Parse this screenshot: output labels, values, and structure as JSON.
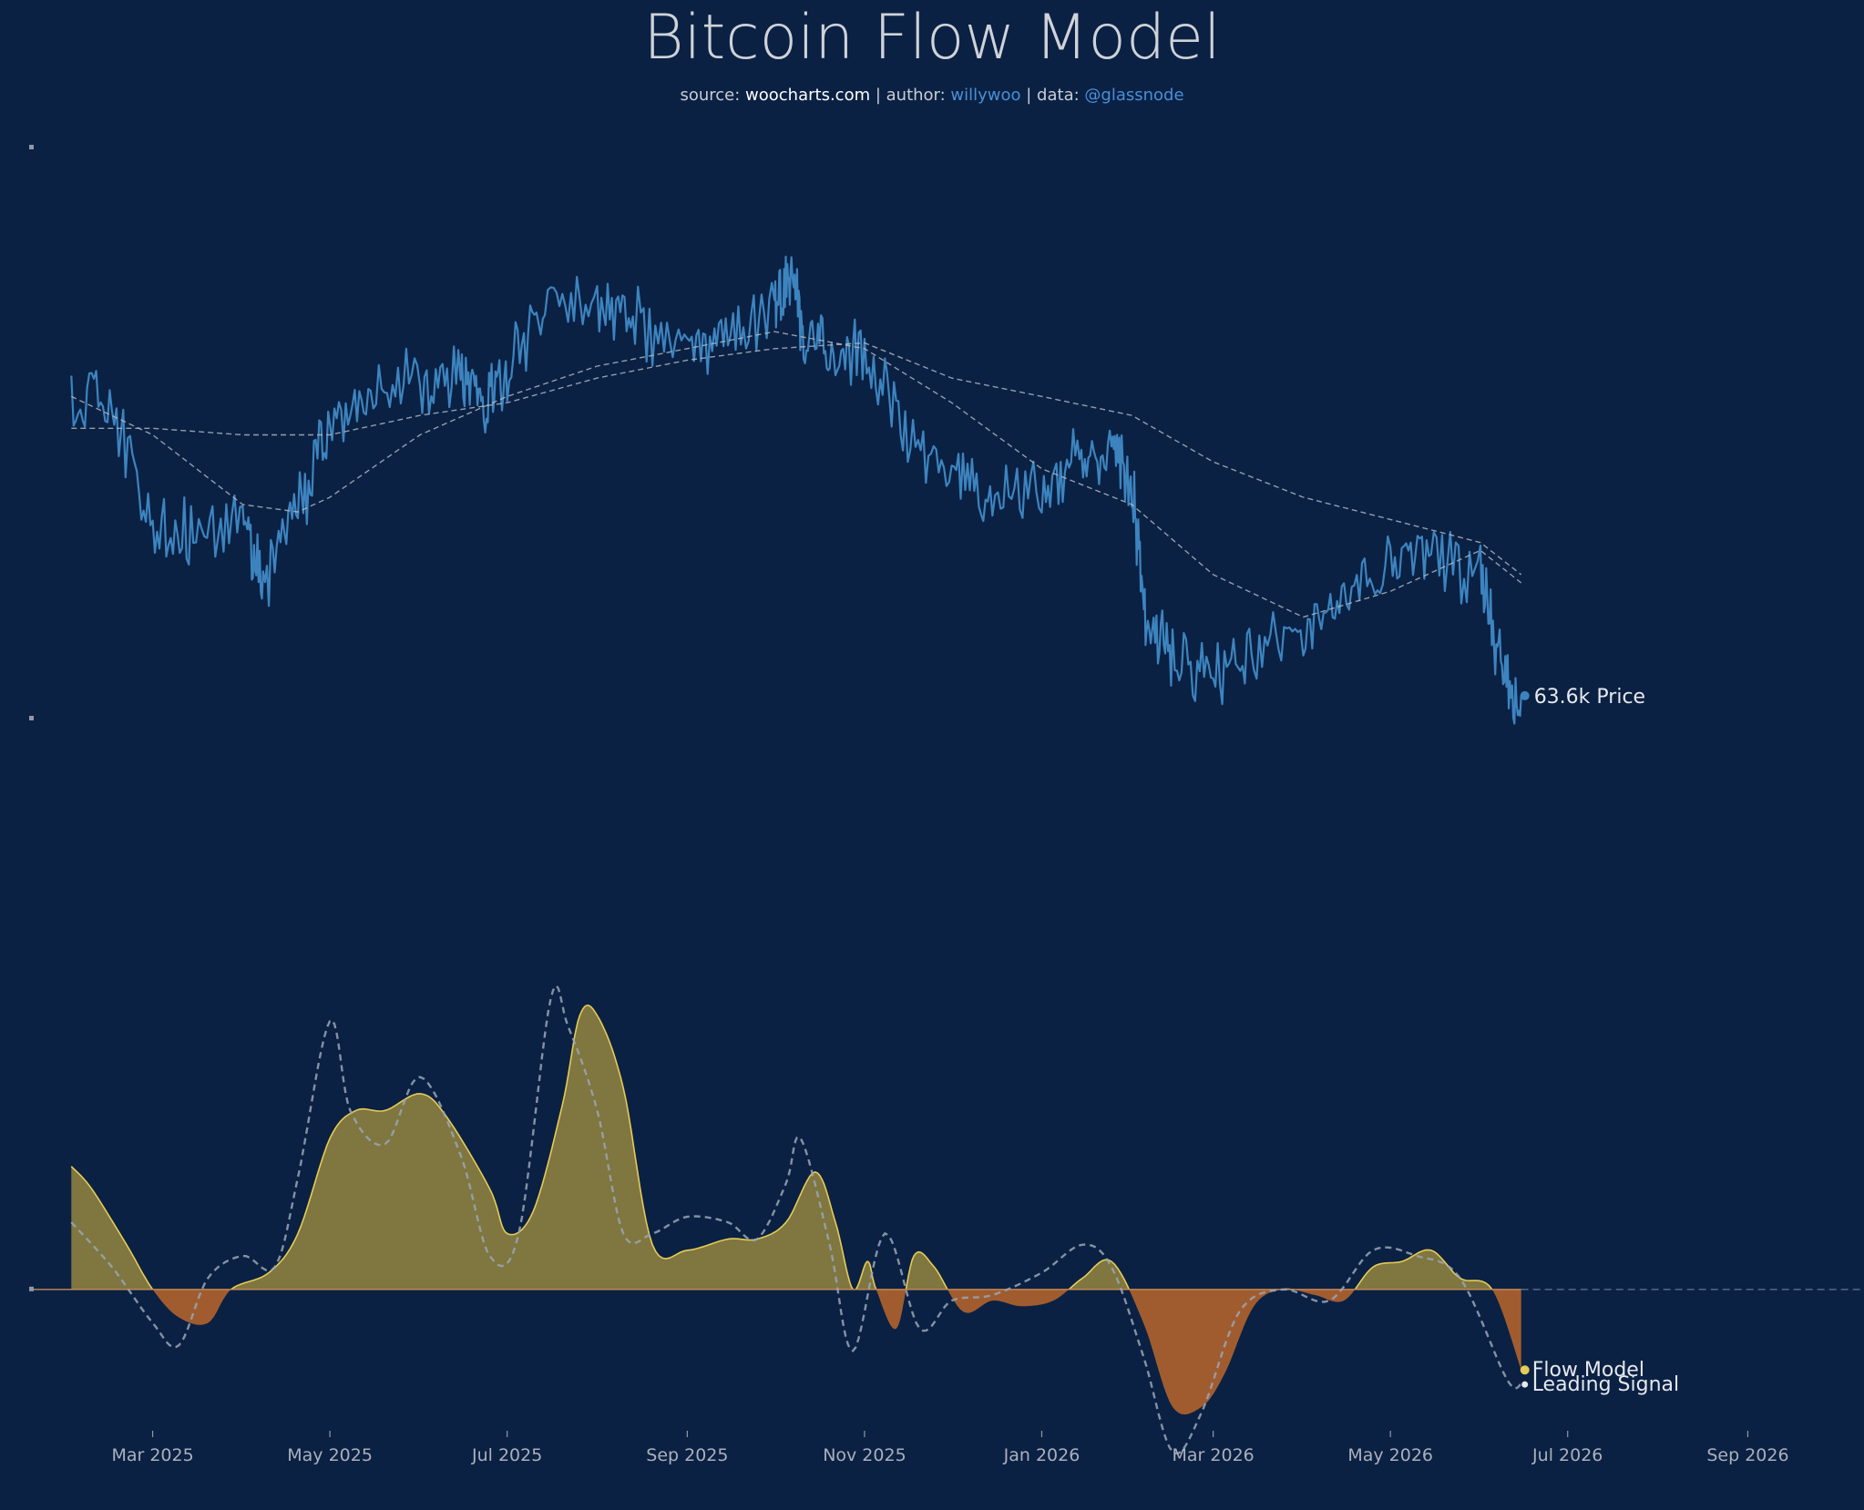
{
  "header": {
    "title": "Bitcoin Flow Model",
    "source_prefix": "source: ",
    "source_value": "woocharts.com",
    "author_prefix": " | author: ",
    "author_value": "willywoo",
    "data_prefix": " | data: ",
    "data_value": "@glassnode"
  },
  "colors": {
    "background": "#0a2144",
    "price": "#3d84bf",
    "flow_positive": "#7f7640",
    "flow_negative": "#a05c2f",
    "flow_line": "#e6cc55",
    "signal": "#9aa6b4",
    "ma": "#b7bdc6"
  },
  "chart_data": [
    {
      "type": "line",
      "panel": "price",
      "series": [
        {
          "name": "Price",
          "end_label": "63.6k Price",
          "x": [
            "2025-02-01",
            "2025-02-15",
            "2025-03-01",
            "2025-03-15",
            "2025-04-01",
            "2025-04-08",
            "2025-04-20",
            "2025-05-01",
            "2025-05-15",
            "2025-06-01",
            "2025-06-15",
            "2025-06-23",
            "2025-07-01",
            "2025-07-14",
            "2025-08-01",
            "2025-08-14",
            "2025-09-01",
            "2025-09-15",
            "2025-10-01",
            "2025-10-06",
            "2025-10-11",
            "2025-10-20",
            "2025-11-01",
            "2025-11-15",
            "2025-12-01",
            "2025-12-15",
            "2026-01-01",
            "2026-01-14",
            "2026-01-25",
            "2026-02-01",
            "2026-02-06",
            "2026-02-15",
            "2026-03-01",
            "2026-03-15",
            "2026-04-01",
            "2026-04-15",
            "2026-05-01",
            "2026-05-15",
            "2026-06-01",
            "2026-06-08",
            "2026-06-15"
          ],
          "y": [
            102,
            100,
            84,
            82,
            84,
            76,
            85,
            97,
            103,
            105,
            105,
            101,
            107,
            119,
            117,
            115,
            110,
            113,
            118,
            124,
            113,
            109,
            110,
            96,
            90,
            88,
            88,
            92,
            94,
            89,
            71,
            68,
            66,
            68,
            70,
            74,
            78,
            80,
            77,
            66,
            63.6
          ]
        },
        {
          "name": "",
          "x": [
            "2025-02-01",
            "2025-03-01",
            "2025-04-01",
            "2025-04-20",
            "2025-05-01",
            "2025-06-01",
            "2025-07-01",
            "2025-08-01",
            "2025-09-01",
            "2025-10-01",
            "2025-11-01",
            "2025-12-01",
            "2026-01-01",
            "2026-02-01",
            "2026-03-01",
            "2026-04-01",
            "2026-05-01",
            "2026-06-01",
            "2026-06-15"
          ],
          "y": [
            102,
            96,
            86,
            85,
            87,
            96,
            102,
            107,
            110,
            113,
            110,
            101,
            91,
            86,
            77,
            72,
            75,
            80,
            76
          ]
        },
        {
          "name": "",
          "x": [
            "2025-02-01",
            "2025-03-01",
            "2025-04-01",
            "2025-05-01",
            "2025-06-01",
            "2025-07-01",
            "2025-08-01",
            "2025-09-01",
            "2025-10-01",
            "2025-11-01",
            "2025-12-01",
            "2026-01-01",
            "2026-02-01",
            "2026-03-01",
            "2026-04-01",
            "2026-05-01",
            "2026-06-01",
            "2026-06-15"
          ],
          "y": [
            97,
            97,
            96,
            96,
            99,
            101,
            105,
            108,
            110,
            111,
            105,
            102,
            99,
            92,
            87,
            84,
            81,
            77
          ]
        }
      ],
      "y_scale": "log",
      "ylim": [
        55,
        140
      ],
      "grid": false,
      "legend": "none"
    },
    {
      "type": "area",
      "panel": "flow",
      "series": [
        {
          "name": "Flow Model",
          "end_label": "Flow Model",
          "x": [
            "2025-02-01",
            "2025-02-08",
            "2025-02-20",
            "2025-03-01",
            "2025-03-10",
            "2025-03-20",
            "2025-03-28",
            "2025-04-10",
            "2025-04-20",
            "2025-05-01",
            "2025-05-10",
            "2025-05-20",
            "2025-06-01",
            "2025-06-10",
            "2025-06-25",
            "2025-07-01",
            "2025-07-10",
            "2025-07-20",
            "2025-07-26",
            "2025-08-01",
            "2025-08-10",
            "2025-08-20",
            "2025-09-01",
            "2025-09-15",
            "2025-09-25",
            "2025-10-05",
            "2025-10-15",
            "2025-10-22",
            "2025-10-28",
            "2025-11-02",
            "2025-11-05",
            "2025-11-12",
            "2025-11-18",
            "2025-11-25",
            "2025-12-05",
            "2025-12-15",
            "2025-12-25",
            "2026-01-05",
            "2026-01-15",
            "2026-01-25",
            "2026-02-05",
            "2026-02-15",
            "2026-02-25",
            "2026-03-05",
            "2026-03-15",
            "2026-03-25",
            "2026-04-05",
            "2026-04-15",
            "2026-04-25",
            "2026-05-05",
            "2026-05-15",
            "2026-05-25",
            "2026-06-05",
            "2026-06-15"
          ],
          "y": [
            1.1,
            0.9,
            0.4,
            0.0,
            -0.25,
            -0.3,
            0.0,
            0.15,
            0.5,
            1.35,
            1.6,
            1.6,
            1.75,
            1.55,
            0.9,
            0.5,
            0.7,
            1.65,
            2.45,
            2.45,
            1.8,
            0.4,
            0.35,
            0.45,
            0.45,
            0.6,
            1.05,
            0.6,
            0.0,
            0.25,
            0.0,
            -0.35,
            0.3,
            0.2,
            -0.2,
            -0.1,
            -0.15,
            -0.1,
            0.1,
            0.25,
            -0.3,
            -1.05,
            -1.05,
            -0.75,
            -0.15,
            0.0,
            -0.05,
            -0.1,
            0.2,
            0.25,
            0.35,
            0.1,
            0.0,
            -0.72
          ]
        },
        {
          "name": "Leading Signal",
          "end_label": "Leading Signal",
          "x": [
            "2025-02-01",
            "2025-02-15",
            "2025-03-01",
            "2025-03-10",
            "2025-03-20",
            "2025-04-01",
            "2025-04-12",
            "2025-04-20",
            "2025-05-01",
            "2025-05-08",
            "2025-05-20",
            "2025-06-01",
            "2025-06-15",
            "2025-06-25",
            "2025-07-05",
            "2025-07-16",
            "2025-07-22",
            "2025-08-01",
            "2025-08-10",
            "2025-08-20",
            "2025-09-01",
            "2025-09-15",
            "2025-09-25",
            "2025-10-05",
            "2025-10-10",
            "2025-10-20",
            "2025-10-28",
            "2025-11-08",
            "2025-11-20",
            "2025-12-01",
            "2025-12-15",
            "2026-01-01",
            "2026-01-15",
            "2026-01-25",
            "2026-02-05",
            "2026-02-15",
            "2026-02-25",
            "2026-03-10",
            "2026-03-25",
            "2026-04-10",
            "2026-04-25",
            "2026-05-10",
            "2026-05-25",
            "2026-06-10",
            "2026-06-15"
          ],
          "y": [
            0.6,
            0.2,
            -0.3,
            -0.5,
            0.1,
            0.3,
            0.2,
            1.0,
            2.4,
            1.6,
            1.3,
            1.9,
            1.2,
            0.3,
            0.5,
            2.6,
            2.35,
            1.6,
            0.5,
            0.5,
            0.65,
            0.6,
            0.45,
            0.95,
            1.35,
            0.4,
            -0.55,
            0.5,
            -0.35,
            -0.1,
            -0.05,
            0.15,
            0.4,
            0.2,
            -0.6,
            -1.45,
            -1.1,
            -0.2,
            0.0,
            -0.1,
            0.35,
            0.3,
            0.1,
            -0.8,
            -0.85
          ]
        }
      ],
      "zero_line": true,
      "ylim": [
        -1.5,
        2.8
      ],
      "grid": false,
      "legend": "none"
    }
  ],
  "axes": {
    "x_domain": [
      "2025-01-20",
      "2026-09-25"
    ],
    "ticks": [
      {
        "date": "2025-03-01",
        "label": "Mar 2025"
      },
      {
        "date": "2025-05-01",
        "label": "May 2025"
      },
      {
        "date": "2025-07-01",
        "label": "Jul 2025"
      },
      {
        "date": "2025-09-01",
        "label": "Sep 2025"
      },
      {
        "date": "2025-11-01",
        "label": "Nov 2025"
      },
      {
        "date": "2026-01-01",
        "label": "Jan 2026"
      },
      {
        "date": "2026-03-01",
        "label": "Mar 2026"
      },
      {
        "date": "2026-05-01",
        "label": "May 2026"
      },
      {
        "date": "2026-07-01",
        "label": "Jul 2026"
      },
      {
        "date": "2026-09-01",
        "label": "Sep 2026"
      }
    ]
  }
}
